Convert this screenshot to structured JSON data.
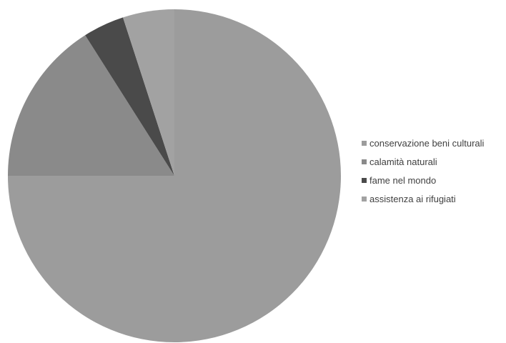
{
  "chart_data": {
    "type": "pie",
    "title": "",
    "categories": [
      "conservazione beni culturali",
      "calamità naturali",
      "fame nel mondo",
      "assistenza ai rifugiati"
    ],
    "values": [
      75,
      16,
      4,
      5
    ],
    "unit": "%",
    "colors": [
      "#9c9c9c",
      "#8a8a8a",
      "#4a4a4a",
      "#a2a2a2"
    ],
    "start": "12 o'clock",
    "direction": "clockwise",
    "legend_position": "right"
  }
}
